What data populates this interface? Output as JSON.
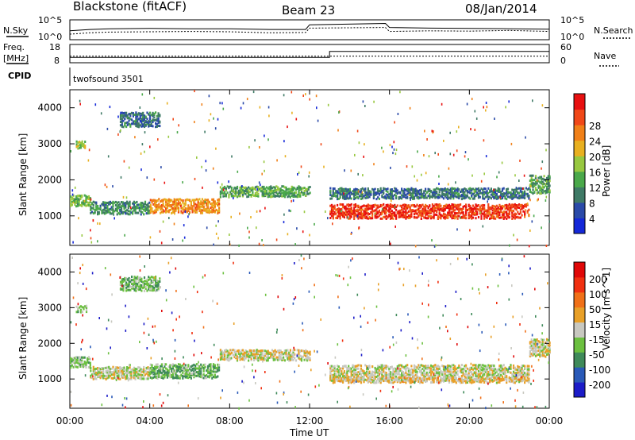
{
  "header": {
    "station": "Blackstone (fitACF)",
    "beam": "Beam 23",
    "date": "08/Jan/2014"
  },
  "panels": {
    "noise": {
      "left_label": "N.Sky",
      "right_label": "N.Search",
      "left_ticks": [
        "10^5",
        "10^0"
      ],
      "right_ticks": [
        "10^5",
        "10^0"
      ]
    },
    "freq": {
      "left_label_1": "Freq.",
      "left_label_2": "[MHz]",
      "right_label": "Nave",
      "left_ticks": [
        "18",
        "8"
      ],
      "right_ticks": [
        "60",
        "0"
      ]
    },
    "cpid": {
      "label": "CPID",
      "program": "twofsound 3501"
    }
  },
  "time_axis": {
    "label": "Time UT",
    "ticks": [
      "00:00",
      "04:00",
      "08:00",
      "12:00",
      "16:00",
      "20:00",
      "00:00"
    ]
  },
  "range_ticks": [
    "1000",
    "2000",
    "3000",
    "4000"
  ],
  "range_label": "Slant Range [km]",
  "power_scale": {
    "label": "Power [dB]",
    "ticks": [
      "4",
      "8",
      "12",
      "16",
      "20",
      "24",
      "28"
    ],
    "colors": [
      "#1428d8",
      "#2a4aa8",
      "#3f7a66",
      "#4aa84a",
      "#98c840",
      "#e8b020",
      "#f08018",
      "#f04818",
      "#e81010"
    ]
  },
  "velocity_scale": {
    "label": "Velocity [m s^-1]",
    "ticks": [
      "200",
      "100",
      "50",
      "15",
      "-15",
      "-50",
      "-100",
      "-200"
    ],
    "colors": [
      "#1c1cc8",
      "#2a5ab8",
      "#3f8a5a",
      "#6cc040",
      "#c8c8c0",
      "#e8a028",
      "#f07018",
      "#f03010",
      "#e00808"
    ]
  },
  "chart_data": [
    {
      "type": "heatmap",
      "title": "Power",
      "xlabel": "Time UT",
      "ylabel": "Slant Range [km]",
      "xlim": [
        0,
        24
      ],
      "ylim": [
        180,
        4500
      ],
      "colorbar_label": "Power [dB]",
      "colorbar_range": [
        0,
        32
      ],
      "echo_bands": [
        {
          "t_start": 0.0,
          "t_end": 1.0,
          "range_center": 1450,
          "range_width": 300,
          "value": 14
        },
        {
          "t_start": 1.0,
          "t_end": 4.0,
          "range_center": 1250,
          "range_width": 350,
          "value": 10
        },
        {
          "t_start": 4.0,
          "t_end": 7.5,
          "range_center": 1300,
          "range_width": 400,
          "value": 22
        },
        {
          "t_start": 7.5,
          "t_end": 12.0,
          "range_center": 1700,
          "range_width": 300,
          "value": 12
        },
        {
          "t_start": 13.0,
          "t_end": 23.0,
          "range_center": 1150,
          "range_width": 400,
          "value": 28
        },
        {
          "t_start": 13.0,
          "t_end": 23.0,
          "range_center": 1650,
          "range_width": 300,
          "value": 8
        },
        {
          "t_start": 23.0,
          "t_end": 24.0,
          "range_center": 1900,
          "range_width": 500,
          "value": 12
        },
        {
          "t_start": 2.5,
          "t_end": 4.5,
          "range_center": 3700,
          "range_width": 400,
          "value": 8
        },
        {
          "t_start": 0.3,
          "t_end": 0.8,
          "range_center": 3000,
          "range_width": 200,
          "value": 16
        }
      ]
    },
    {
      "type": "heatmap",
      "title": "Velocity",
      "xlabel": "Time UT",
      "ylabel": "Slant Range [km]",
      "xlim": [
        0,
        24
      ],
      "ylim": [
        180,
        4500
      ],
      "colorbar_label": "Velocity [m s^-1]",
      "colorbar_range": [
        -250,
        250
      ],
      "echo_bands": [
        {
          "t_start": 0.0,
          "t_end": 1.0,
          "range_center": 1500,
          "range_width": 300,
          "value": -50
        },
        {
          "t_start": 1.0,
          "t_end": 4.0,
          "range_center": 1200,
          "range_width": 350,
          "value": 0
        },
        {
          "t_start": 4.0,
          "t_end": 7.5,
          "range_center": 1250,
          "range_width": 400,
          "value": -70
        },
        {
          "t_start": 7.5,
          "t_end": 12.0,
          "range_center": 1700,
          "range_width": 300,
          "value": 0
        },
        {
          "t_start": 13.0,
          "t_end": 23.0,
          "range_center": 1200,
          "range_width": 450,
          "value": 0
        },
        {
          "t_start": 13.0,
          "t_end": 23.0,
          "range_center": 1000,
          "range_width": 150,
          "value": 30
        },
        {
          "t_start": 23.0,
          "t_end": 24.0,
          "range_center": 1900,
          "range_width": 500,
          "value": 0
        },
        {
          "t_start": 2.5,
          "t_end": 4.5,
          "range_center": 3700,
          "range_width": 400,
          "value": -60
        },
        {
          "t_start": 0.3,
          "t_end": 0.8,
          "range_center": 3000,
          "range_width": 200,
          "value": -30
        }
      ]
    },
    {
      "type": "line",
      "title": "N.Sky / N.Search",
      "x": [
        0,
        1,
        2,
        4,
        6,
        8,
        10,
        11.8,
        12.0,
        15.8,
        16.0,
        18,
        20,
        22,
        24
      ],
      "series": [
        {
          "name": "N.Sky",
          "values": [
            2.2,
            2.6,
            2.8,
            2.9,
            2.8,
            2.8,
            2.6,
            2.6,
            4.0,
            4.4,
            3.2,
            3.0,
            2.9,
            2.8,
            2.7
          ]
        },
        {
          "name": "N.Search",
          "values": [
            1.2,
            1.6,
            1.8,
            1.9,
            2.0,
            1.9,
            1.6,
            1.7,
            3.0,
            3.2,
            2.0,
            2.2,
            2.1,
            2.3,
            2.0
          ]
        }
      ],
      "ylim": [
        0,
        5
      ]
    },
    {
      "type": "line",
      "title": "Freq / Nave",
      "x": [
        0,
        13.0,
        13.0,
        24
      ],
      "series": [
        {
          "name": "Freq.",
          "values": [
            10.5,
            10.5,
            14.5,
            14.5
          ]
        },
        {
          "name": "Nave",
          "values": [
            20,
            20,
            20,
            20
          ]
        }
      ],
      "ylim": [
        8,
        18
      ]
    }
  ]
}
